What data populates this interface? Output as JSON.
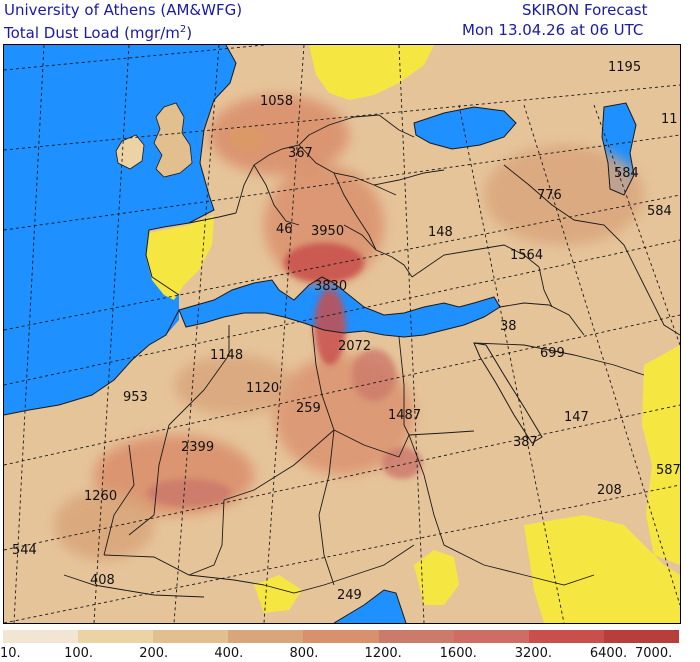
{
  "header": {
    "org": "University of Athens (AM&WFG)",
    "quantity": "Total Dust Load (mgr/m",
    "quantity_sup": "2",
    "quantity_end": ")",
    "forecast": "SKIRON Forecast",
    "valid_time": "Mon 13.04.26 at 06 UTC"
  },
  "colors": {
    "sea": "#1e90ff",
    "no_dust_land": "#f5e642",
    "border": "#1a1a1a",
    "grid": "#1a1a1a"
  },
  "map_labels": [
    {
      "id": "v1195",
      "text": "1195"
    },
    {
      "id": "v11",
      "text": "11"
    },
    {
      "id": "v1058",
      "text": "1058"
    },
    {
      "id": "v367",
      "text": "367"
    },
    {
      "id": "v776",
      "text": "776"
    },
    {
      "id": "v584a",
      "text": "584"
    },
    {
      "id": "v584b",
      "text": "584"
    },
    {
      "id": "v46",
      "text": "46"
    },
    {
      "id": "v3950",
      "text": "3950"
    },
    {
      "id": "v148",
      "text": "148"
    },
    {
      "id": "v1564",
      "text": "1564"
    },
    {
      "id": "v3830",
      "text": "3830"
    },
    {
      "id": "v38",
      "text": "38"
    },
    {
      "id": "v699",
      "text": "699"
    },
    {
      "id": "v2072",
      "text": "2072"
    },
    {
      "id": "v1148",
      "text": "1148"
    },
    {
      "id": "v953",
      "text": "953"
    },
    {
      "id": "v1120",
      "text": "1120"
    },
    {
      "id": "v259",
      "text": "259"
    },
    {
      "id": "v1487",
      "text": "1487"
    },
    {
      "id": "v147",
      "text": "147"
    },
    {
      "id": "v387",
      "text": "387"
    },
    {
      "id": "v2399",
      "text": "2399"
    },
    {
      "id": "v587",
      "text": "587"
    },
    {
      "id": "v1260",
      "text": "1260"
    },
    {
      "id": "v208",
      "text": "208"
    },
    {
      "id": "v544",
      "text": "544"
    },
    {
      "id": "v408",
      "text": "408"
    },
    {
      "id": "v249",
      "text": "249"
    }
  ],
  "color_scale": {
    "swatches": [
      "#f2e6d2",
      "#ecd3a4",
      "#e2bf8e",
      "#d9a67c",
      "#d9906d",
      "#cc7a6c",
      "#cf6c65",
      "#c84f4c",
      "#b83e3c"
    ],
    "values": [
      "10.",
      "100.",
      "200.",
      "400.",
      "800.",
      "1200.",
      "1600.",
      "3200.",
      "6400.",
      "7000."
    ]
  }
}
